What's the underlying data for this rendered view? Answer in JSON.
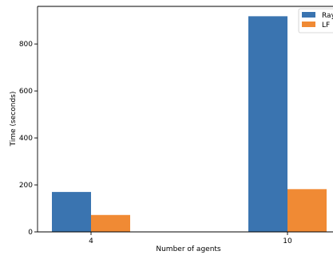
{
  "chart_data": {
    "type": "bar",
    "title": "",
    "xlabel": "Number of agents",
    "ylabel": "Time (seconds)",
    "categories": [
      "4",
      "10"
    ],
    "series": [
      {
        "name": "Ray",
        "color": "#3a74b0",
        "values": [
          170,
          918
        ]
      },
      {
        "name": "LF",
        "color": "#f08a34",
        "values": [
          72,
          182
        ]
      }
    ],
    "ylim": [
      0,
      960
    ],
    "yticks": [
      0,
      200,
      400,
      600,
      800
    ],
    "grid": false,
    "legend": "top-right"
  }
}
